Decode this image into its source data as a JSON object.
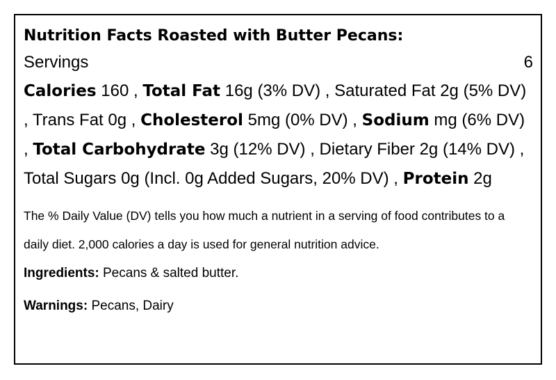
{
  "title": "Nutrition Facts Roasted with Butter Pecans:",
  "servings": {
    "label": "Servings",
    "value": "6"
  },
  "facts": {
    "calories_label": "Calories",
    "calories_text": " 160 , ",
    "total_fat_label": "Total Fat",
    "total_fat_text": " 16g (3% DV) , Saturated Fat 2g (5% DV) , Trans Fat 0g , ",
    "cholesterol_label": "Cholesterol",
    "cholesterol_text": " 5mg (0% DV) , ",
    "sodium_label": "Sodium",
    "sodium_text": " mg (6% DV) , ",
    "total_carb_label": "Total Carbohydrate",
    "total_carb_text": " 3g (12% DV) , Dietary Fiber 2g (14% DV) , Total Sugars 0g (Incl. 0g Added Sugars, 20% DV) , ",
    "protein_label": "Protein",
    "protein_text": " 2g"
  },
  "dv_note": "The % Daily Value (DV) tells you how much a nutrient in a serving of food contributes to a daily diet. 2,000 calories a day is used for general nutrition advice.",
  "ingredients": {
    "label": "Ingredients:",
    "value": " Pecans & salted butter."
  },
  "warnings": {
    "label": "Warnings:",
    "value": " Pecans, Dairy"
  }
}
